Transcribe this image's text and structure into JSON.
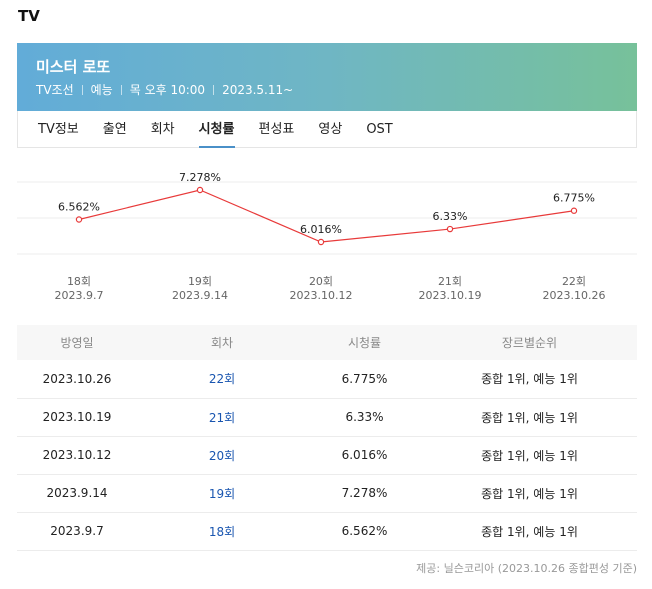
{
  "section_title": "TV",
  "program": {
    "title": "미스터 로또",
    "channel": "TV조선",
    "genre": "예능",
    "schedule": "목 오후 10:00",
    "start_date": "2023.5.11~"
  },
  "tabs": [
    {
      "label": "TV정보",
      "active": false
    },
    {
      "label": "출연",
      "active": false
    },
    {
      "label": "회차",
      "active": false
    },
    {
      "label": "시청률",
      "active": true
    },
    {
      "label": "편성표",
      "active": false
    },
    {
      "label": "영상",
      "active": false
    },
    {
      "label": "OST",
      "active": false
    }
  ],
  "chart_data": {
    "type": "line",
    "x": [
      "18회",
      "19회",
      "20회",
      "21회",
      "22회"
    ],
    "dates": [
      "2023.9.7",
      "2023.9.14",
      "2023.10.12",
      "2023.10.19",
      "2023.10.26"
    ],
    "series": [
      {
        "values": [
          6.562,
          7.278,
          6.016,
          6.33,
          6.775
        ]
      }
    ],
    "data_labels": [
      "6.562%",
      "7.278%",
      "6.016%",
      "6.33%",
      "6.775%"
    ],
    "line_color": "#e83a3a",
    "grid": true
  },
  "table": {
    "headers": [
      "방영일",
      "회차",
      "시청률",
      "장르별순위"
    ],
    "rows": [
      [
        "2023.10.26",
        "22회",
        "6.775%",
        "종합 1위, 예능 1위"
      ],
      [
        "2023.10.19",
        "21회",
        "6.33%",
        "종합 1위, 예능 1위"
      ],
      [
        "2023.10.12",
        "20회",
        "6.016%",
        "종합 1위, 예능 1위"
      ],
      [
        "2023.9.14",
        "19회",
        "7.278%",
        "종합 1위, 예능 1위"
      ],
      [
        "2023.9.7",
        "18회",
        "6.562%",
        "종합 1위, 예능 1위"
      ]
    ]
  },
  "source_note": "제공: 닐슨코리아 (2023.10.26 종합편성 기준)"
}
